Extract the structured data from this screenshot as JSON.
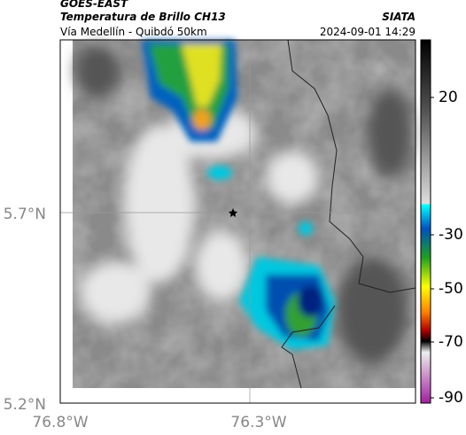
{
  "header": {
    "satellite": "GOES-EAST",
    "product": "Temperatura de Brillo CH13",
    "region": "Vía Medellín - Quibdó 50km",
    "source": "SIATA",
    "datetime": "2024-09-01 14:29"
  },
  "axes": {
    "lat_labels": [
      "5.7°N",
      "5.2°N"
    ],
    "lon_labels": [
      "76.8°W",
      "76.3°W"
    ]
  },
  "colorbar": {
    "tick_labels": [
      "20",
      "-30",
      "-50",
      "-70",
      "-90"
    ]
  }
}
